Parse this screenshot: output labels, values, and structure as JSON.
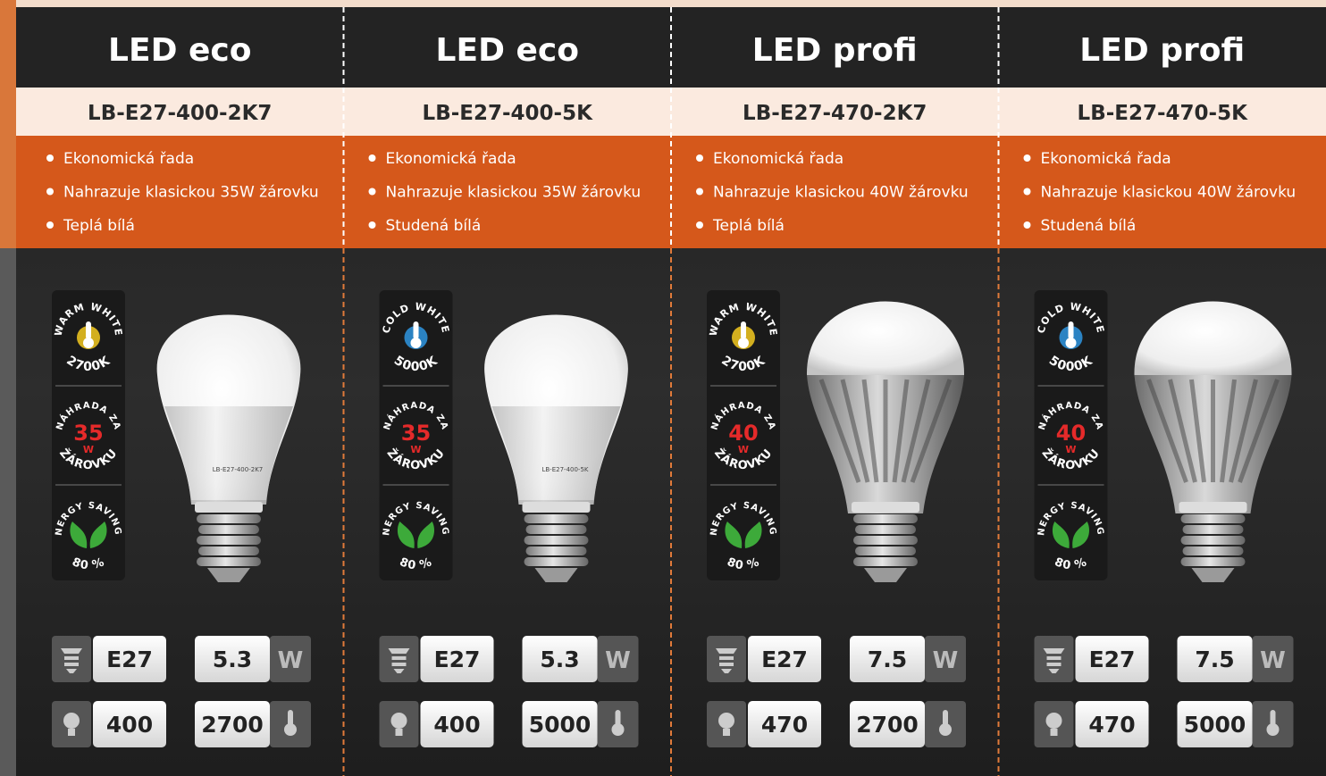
{
  "products": [
    {
      "title": "LED eco",
      "code": "LB-E27-400-2K7",
      "features": [
        "Ekonomická řada",
        "Nahrazuje klasickou 35W žárovku",
        "Teplá bílá"
      ],
      "color_badge": {
        "top": "WARM WHITE",
        "bottom": "2700K"
      },
      "replace_badge": {
        "top": "NÁHRADA ZA",
        "number": "35",
        "unit": "W",
        "bottom": "ŽÁROVKU"
      },
      "energy_badge": {
        "top": "ENERGY SAVINGS",
        "bottom": "80 %"
      },
      "bulb_label": "LB-E27-400-2K7",
      "specs": {
        "socket": "E27",
        "power": "5.3",
        "power_unit": "W",
        "lumens": "400",
        "kelvin": "2700"
      }
    },
    {
      "title": "LED eco",
      "code": "LB-E27-400-5K",
      "features": [
        "Ekonomická řada",
        "Nahrazuje klasickou 35W žárovku",
        "Studená bílá"
      ],
      "color_badge": {
        "top": "COLD WHITE",
        "bottom": "5000K"
      },
      "replace_badge": {
        "top": "NÁHRADA ZA",
        "number": "35",
        "unit": "W",
        "bottom": "ŽÁROVKU"
      },
      "energy_badge": {
        "top": "ENERGY SAVINGS",
        "bottom": "80 %"
      },
      "bulb_label": "LB-E27-400-5K",
      "specs": {
        "socket": "E27",
        "power": "5.3",
        "power_unit": "W",
        "lumens": "400",
        "kelvin": "5000"
      }
    },
    {
      "title": "LED profi",
      "code": "LB-E27-470-2K7",
      "features": [
        "Ekonomická řada",
        "Nahrazuje klasickou 40W žárovku",
        "Teplá bílá"
      ],
      "color_badge": {
        "top": "WARM WHITE",
        "bottom": "2700K"
      },
      "replace_badge": {
        "top": "NÁHRADA ZA",
        "number": "40",
        "unit": "W",
        "bottom": "ŽÁROVKU"
      },
      "energy_badge": {
        "top": "ENERGY SAVINGS",
        "bottom": "80 %"
      },
      "bulb_label": "LB-E27-470-2K7",
      "specs": {
        "socket": "E27",
        "power": "7.5",
        "power_unit": "W",
        "lumens": "470",
        "kelvin": "2700"
      }
    },
    {
      "title": "LED profi",
      "code": "LB-E27-470-5K",
      "features": [
        "Ekonomická řada",
        "Nahrazuje klasickou 40W žárovku",
        "Studená bílá"
      ],
      "color_badge": {
        "top": "COLD WHITE",
        "bottom": "5000K"
      },
      "replace_badge": {
        "top": "NÁHRADA ZA",
        "number": "40",
        "unit": "W",
        "bottom": "ŽÁROVKU"
      },
      "energy_badge": {
        "top": "ENERGY SAVINGS",
        "bottom": "80 %"
      },
      "bulb_label": "LB-E27-470-5K",
      "specs": {
        "socket": "E27",
        "power": "7.5",
        "power_unit": "W",
        "lumens": "470",
        "kelvin": "5000"
      }
    }
  ]
}
